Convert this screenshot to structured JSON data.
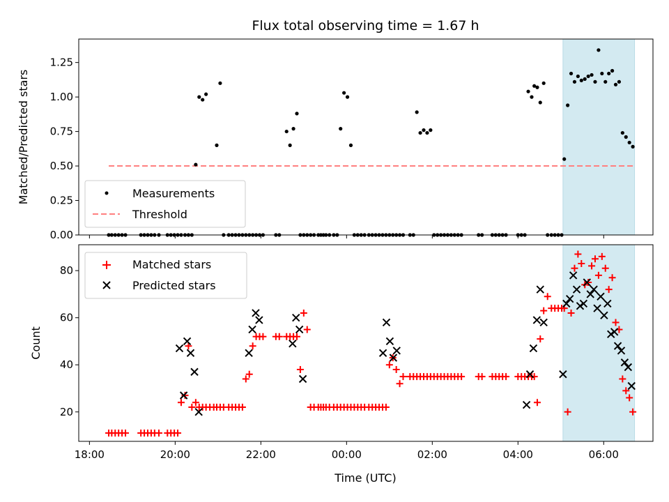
{
  "chart_data": [
    {
      "type": "scatter",
      "title": "Flux total observing time = 1.67 h",
      "xlabel": "",
      "ylabel": "Matched/Predicted stars",
      "ylim": [
        0,
        1.42
      ],
      "yticks": [
        "0.00",
        "0.25",
        "0.50",
        "0.75",
        "1.00",
        "1.25"
      ],
      "ytick_values": [
        0,
        0.25,
        0.5,
        0.75,
        1.0,
        1.25
      ],
      "x_range_hours": [
        17.75,
        31.15
      ],
      "highlight_span_hours": [
        29.05,
        30.72
      ],
      "highlight_color": "#d3eaf1",
      "legend": [
        {
          "label": "Measurements",
          "color": "#000000",
          "marker": "dot"
        },
        {
          "label": "Threshold",
          "color": "#ff7f7f",
          "marker": "dashed-line"
        }
      ],
      "threshold": {
        "value": 0.5,
        "x_start": 18.45,
        "x_end": 30.72
      },
      "series": [
        {
          "name": "Measurements",
          "x": [
            18.45,
            18.52,
            18.6,
            18.68,
            18.76,
            18.84,
            19.2,
            19.28,
            19.36,
            19.44,
            19.52,
            19.62,
            19.82,
            19.9,
            19.98,
            20.06,
            20.14,
            20.23,
            20.31,
            20.39,
            20.48,
            20.56,
            20.64,
            20.72,
            20.97,
            21.05,
            21.13,
            21.25,
            21.33,
            21.41,
            21.49,
            21.57,
            21.65,
            21.73,
            21.81,
            21.89,
            21.97,
            22.05,
            22.35,
            22.43,
            22.6,
            22.68,
            22.76,
            22.84,
            22.92,
            23.0,
            23.08,
            23.16,
            23.24,
            23.34,
            23.4,
            23.46,
            23.52,
            23.6,
            23.7,
            23.78,
            23.86,
            23.94,
            24.02,
            24.1,
            24.18,
            24.26,
            24.34,
            24.42,
            24.52,
            24.6,
            24.68,
            24.76,
            24.84,
            24.92,
            25.0,
            25.08,
            25.16,
            25.24,
            25.32,
            25.48,
            25.56,
            25.64,
            25.72,
            25.8,
            25.88,
            25.96,
            26.04,
            26.12,
            26.2,
            26.28,
            26.36,
            26.44,
            26.52,
            26.6,
            26.68,
            27.08,
            27.16,
            27.4,
            27.48,
            27.56,
            27.64,
            27.72,
            28.0,
            28.08,
            28.16,
            28.24,
            28.32,
            28.38,
            28.45,
            28.52,
            28.6,
            28.69,
            28.78,
            28.86,
            28.94,
            29.02,
            29.08,
            29.16,
            29.24,
            29.32,
            29.4,
            29.48,
            29.56,
            29.64,
            29.72,
            29.8,
            29.88,
            29.96,
            30.04,
            30.12,
            30.2,
            30.28,
            30.36,
            30.44,
            30.52,
            30.6,
            30.68
          ],
          "y": [
            0,
            0,
            0,
            0,
            0,
            0,
            0,
            0,
            0,
            0,
            0,
            0,
            0,
            0,
            0,
            0,
            0,
            0,
            0,
            0,
            0.51,
            1.0,
            0.98,
            1.02,
            0.65,
            1.1,
            0,
            0,
            0,
            0,
            0,
            0,
            0,
            0,
            0,
            0,
            0,
            0,
            0,
            0,
            0.75,
            0.65,
            0.77,
            0.88,
            0,
            0,
            0,
            0,
            0,
            0,
            0,
            0,
            0,
            0,
            0,
            0,
            0.77,
            1.03,
            1.0,
            0.65,
            0,
            0,
            0,
            0,
            0,
            0,
            0,
            0,
            0,
            0,
            0,
            0,
            0,
            0,
            0,
            0,
            0,
            0.89,
            0.74,
            0.76,
            0.74,
            0.76,
            0,
            0,
            0,
            0,
            0,
            0,
            0,
            0,
            0,
            0,
            0,
            0,
            0,
            0,
            0,
            0,
            0,
            0,
            0,
            1.04,
            1.0,
            1.08,
            1.07,
            0.96,
            1.1,
            0,
            0,
            0,
            0,
            0,
            0.55,
            0.94,
            1.17,
            1.11,
            1.15,
            1.12,
            1.13,
            1.15,
            1.16,
            1.11,
            1.34,
            1.17,
            1.11,
            1.17,
            1.19,
            1.09,
            1.11,
            0.74,
            0.71,
            0.67,
            0.64
          ]
        }
      ]
    },
    {
      "type": "scatter",
      "title": "",
      "xlabel": "Time (UTC)",
      "ylabel": "Count",
      "ylim": [
        7.5,
        91
      ],
      "yticks": [
        "20",
        "40",
        "60",
        "80"
      ],
      "ytick_values": [
        20,
        40,
        60,
        80
      ],
      "x_range_hours": [
        17.75,
        31.15
      ],
      "xticks": [
        "18:00",
        "20:00",
        "22:00",
        "00:00",
        "02:00",
        "04:00",
        "06:00"
      ],
      "xtick_values": [
        18,
        20,
        22,
        24,
        26,
        28,
        30
      ],
      "highlight_span_hours": [
        29.05,
        30.72
      ],
      "legend": [
        {
          "label": "Matched stars",
          "color": "#ff0000",
          "marker": "plus"
        },
        {
          "label": "Predicted stars",
          "color": "#000000",
          "marker": "x"
        }
      ],
      "series": [
        {
          "name": "Matched stars",
          "x": [
            18.45,
            18.52,
            18.6,
            18.68,
            18.76,
            18.84,
            19.2,
            19.28,
            19.36,
            19.44,
            19.52,
            19.62,
            19.82,
            19.9,
            19.98,
            20.06,
            20.14,
            20.23,
            20.31,
            20.39,
            20.48,
            20.56,
            20.64,
            20.72,
            20.81,
            20.9,
            20.97,
            21.05,
            21.13,
            21.25,
            21.33,
            21.41,
            21.49,
            21.57,
            21.65,
            21.73,
            21.81,
            21.89,
            21.97,
            22.05,
            22.35,
            22.43,
            22.6,
            22.68,
            22.76,
            22.84,
            22.92,
            23.0,
            23.08,
            23.16,
            23.24,
            23.34,
            23.4,
            23.46,
            23.52,
            23.6,
            23.7,
            23.78,
            23.86,
            23.94,
            24.02,
            24.1,
            24.18,
            24.26,
            24.34,
            24.42,
            24.52,
            24.6,
            24.68,
            24.76,
            24.84,
            24.92,
            25.0,
            25.08,
            25.16,
            25.24,
            25.32,
            25.48,
            25.56,
            25.64,
            25.72,
            25.8,
            25.88,
            25.96,
            26.04,
            26.12,
            26.2,
            26.28,
            26.36,
            26.44,
            26.52,
            26.6,
            26.68,
            27.08,
            27.16,
            27.4,
            27.48,
            27.56,
            27.64,
            27.72,
            28.0,
            28.08,
            28.16,
            28.24,
            28.32,
            28.38,
            28.45,
            28.52,
            28.6,
            28.69,
            28.78,
            28.86,
            28.94,
            29.02,
            29.08,
            29.16,
            29.24,
            29.32,
            29.4,
            29.48,
            29.56,
            29.64,
            29.72,
            29.8,
            29.88,
            29.96,
            30.04,
            30.12,
            30.2,
            30.28,
            30.36,
            30.44,
            30.52,
            30.6,
            30.68
          ],
          "y": [
            11,
            11,
            11,
            11,
            11,
            11,
            11,
            11,
            11,
            11,
            11,
            11,
            11,
            11,
            11,
            11,
            24,
            27,
            48,
            22,
            24,
            22,
            22,
            22,
            22,
            22,
            22,
            22,
            22,
            22,
            22,
            22,
            22,
            22,
            34,
            36,
            48,
            52,
            52,
            52,
            52,
            52,
            52,
            52,
            52,
            52,
            38,
            62,
            55,
            22,
            22,
            22,
            22,
            22,
            22,
            22,
            22,
            22,
            22,
            22,
            22,
            22,
            22,
            22,
            22,
            22,
            22,
            22,
            22,
            22,
            22,
            22,
            40,
            43,
            38,
            32,
            35,
            35,
            35,
            35,
            35,
            35,
            35,
            35,
            35,
            35,
            35,
            35,
            35,
            35,
            35,
            35,
            35,
            35,
            35,
            35,
            35,
            35,
            35,
            35,
            35,
            35,
            35,
            35,
            35,
            35,
            24,
            51,
            63,
            69,
            64,
            64,
            64,
            64,
            64,
            20,
            62,
            81,
            87,
            83,
            74,
            75,
            82,
            85,
            78,
            86,
            81,
            72,
            77,
            58,
            55,
            34,
            29,
            26,
            20
          ]
        },
        {
          "name": "Predicted stars",
          "x": [
            20.1,
            20.2,
            20.28,
            20.36,
            20.45,
            20.55,
            21.72,
            21.8,
            21.88,
            21.96,
            22.74,
            22.82,
            22.9,
            22.98,
            24.85,
            24.93,
            25.01,
            25.09,
            25.17,
            28.2,
            28.28,
            28.36,
            28.44,
            28.52,
            28.6,
            29.05,
            29.13,
            29.21,
            29.29,
            29.37,
            29.45,
            29.53,
            29.61,
            29.69,
            29.77,
            29.85,
            29.93,
            30.01,
            30.09,
            30.17,
            30.25,
            30.33,
            30.41,
            30.49,
            30.57,
            30.65
          ],
          "y": [
            47,
            27,
            50,
            45,
            37,
            20,
            45,
            55,
            62,
            59,
            49,
            60,
            55,
            34,
            45,
            58,
            50,
            43,
            46,
            23,
            36,
            47,
            59,
            72,
            58,
            36,
            66,
            68,
            78,
            72,
            65,
            66,
            75,
            70,
            72,
            64,
            69,
            61,
            66,
            53,
            54,
            48,
            46,
            41,
            39,
            31
          ]
        }
      ]
    }
  ]
}
